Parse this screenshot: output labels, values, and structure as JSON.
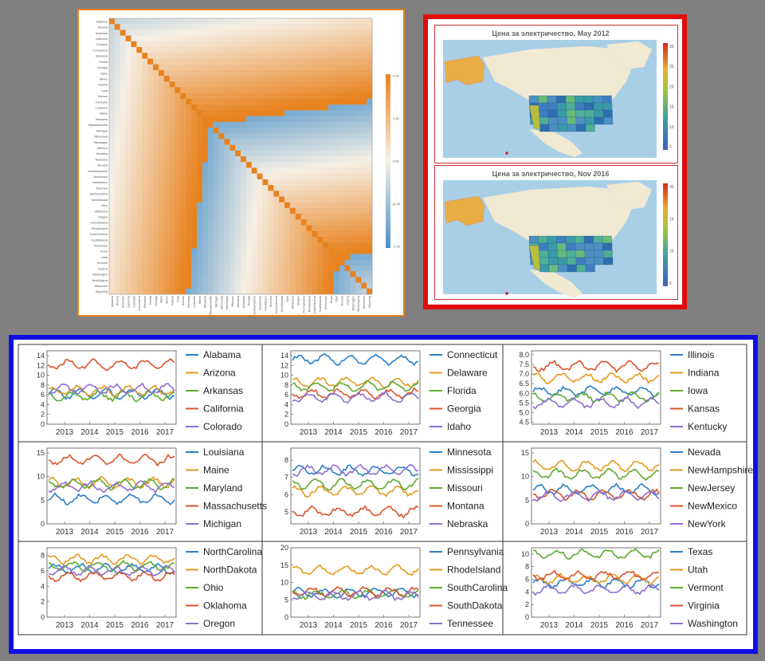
{
  "heatmap": {
    "labels": [
      "Alabama",
      "Arizona",
      "Arkansas",
      "California",
      "Colorado",
      "Connecticut",
      "Delaware",
      "Florida",
      "Georgia",
      "Idaho",
      "Illinois",
      "Indiana",
      "Iowa",
      "Kansas",
      "Kentucky",
      "Louisiana",
      "Maine",
      "Maryland",
      "Massachusetts",
      "Michigan",
      "Minnesota",
      "Mississippi",
      "Missouri",
      "Montana",
      "Nebraska",
      "Nevada",
      "NewHampshire",
      "NewJersey",
      "NewMexico",
      "NewYork",
      "NorthCarolina",
      "NorthDakota",
      "Ohio",
      "Oklahoma",
      "Oregon",
      "Pennsylvania",
      "RhodeIsland",
      "SouthCarolina",
      "SouthDakota",
      "Tennessee",
      "Texas",
      "Utah",
      "Vermont",
      "Virginia",
      "Washington",
      "WestVirginia",
      "Wisconsin",
      "Wyoming"
    ],
    "colorbar_ticks": [
      "0.90",
      "0.45",
      "0.00",
      "-0.45",
      "-0.90"
    ],
    "colorbar_mid": "0",
    "colors": {
      "high": "#e8821e",
      "mid": "#f6f0e6",
      "low": "#4a90c8"
    }
  },
  "maps": [
    {
      "title": "Цена за электричество, May 2012",
      "colorbar_ticks": [
        "30",
        "25",
        "20",
        "15",
        "10",
        "5"
      ]
    },
    {
      "title": "Цена за электричество, Nov 2016",
      "colorbar_ticks": [
        "20",
        "15",
        "10",
        "5"
      ]
    }
  ],
  "chart_data": [
    {
      "type": "line",
      "x_ticks": [
        "2013",
        "2014",
        "2015",
        "2016",
        "2017"
      ],
      "y_ticks": [
        0,
        2,
        4,
        6,
        8,
        10,
        12,
        14
      ],
      "ylim": [
        0,
        15
      ],
      "series": [
        {
          "name": "Alabama",
          "level": 6.2,
          "color": "#2b7fc7"
        },
        {
          "name": "Arizona",
          "level": 6.8,
          "color": "#e59a20"
        },
        {
          "name": "Arkansas",
          "level": 5.8,
          "color": "#5daa2e"
        },
        {
          "name": "California",
          "level": 12.2,
          "color": "#d9552d"
        },
        {
          "name": "Colorado",
          "level": 7.2,
          "color": "#8e6fd0"
        }
      ]
    },
    {
      "type": "line",
      "x_ticks": [
        "2013",
        "2014",
        "2015",
        "2016",
        "2017"
      ],
      "y_ticks": [
        0,
        2,
        4,
        6,
        8,
        10,
        12,
        14
      ],
      "ylim": [
        0,
        15
      ],
      "series": [
        {
          "name": "Connecticut",
          "level": 13.2,
          "color": "#2b7fc7"
        },
        {
          "name": "Delaware",
          "level": 8.6,
          "color": "#e59a20"
        },
        {
          "name": "Florida",
          "level": 7.7,
          "color": "#5daa2e"
        },
        {
          "name": "Georgia",
          "level": 6.2,
          "color": "#d9552d"
        },
        {
          "name": "Idaho",
          "level": 5.5,
          "color": "#8e6fd0"
        }
      ]
    },
    {
      "type": "line",
      "x_ticks": [
        "2013",
        "2014",
        "2015",
        "2016",
        "2017"
      ],
      "y_ticks": [
        4.5,
        5.0,
        5.5,
        6.0,
        6.5,
        7.0,
        7.5,
        8.0
      ],
      "ylim": [
        4.4,
        8.2
      ],
      "series": [
        {
          "name": "Illinois",
          "level": 6.1,
          "color": "#2b7fc7"
        },
        {
          "name": "Indiana",
          "level": 6.8,
          "color": "#e59a20"
        },
        {
          "name": "Iowa",
          "level": 5.8,
          "color": "#5daa2e"
        },
        {
          "name": "Kansas",
          "level": 7.4,
          "color": "#d9552d"
        },
        {
          "name": "Kentucky",
          "level": 5.5,
          "color": "#8e6fd0"
        }
      ]
    },
    {
      "type": "line",
      "x_ticks": [
        "2013",
        "2014",
        "2015",
        "2016",
        "2017"
      ],
      "y_ticks": [
        0,
        5,
        10,
        15
      ],
      "ylim": [
        0,
        16
      ],
      "series": [
        {
          "name": "Louisiana",
          "level": 5.2,
          "color": "#2b7fc7"
        },
        {
          "name": "Maine",
          "level": 8.7,
          "color": "#e59a20"
        },
        {
          "name": "Maryland",
          "level": 8.4,
          "color": "#5daa2e"
        },
        {
          "name": "Massachusetts",
          "level": 13.5,
          "color": "#d9552d"
        },
        {
          "name": "Michigan",
          "level": 7.8,
          "color": "#8e6fd0"
        }
      ]
    },
    {
      "type": "line",
      "x_ticks": [
        "2013",
        "2014",
        "2015",
        "2016",
        "2017"
      ],
      "y_ticks": [
        5,
        6,
        7,
        8
      ],
      "ylim": [
        4.3,
        8.7
      ],
      "series": [
        {
          "name": "Minnesota",
          "level": 7.4,
          "color": "#2b7fc7"
        },
        {
          "name": "Mississippi",
          "level": 6.2,
          "color": "#e59a20"
        },
        {
          "name": "Missouri",
          "level": 6.6,
          "color": "#5daa2e"
        },
        {
          "name": "Montana",
          "level": 5.0,
          "color": "#d9552d"
        },
        {
          "name": "Nebraska",
          "level": 7.4,
          "color": "#8e6fd0"
        }
      ]
    },
    {
      "type": "line",
      "x_ticks": [
        "2013",
        "2014",
        "2015",
        "2016",
        "2017"
      ],
      "y_ticks": [
        0,
        5,
        10,
        15
      ],
      "ylim": [
        0,
        16
      ],
      "series": [
        {
          "name": "Nevada",
          "level": 7.2,
          "color": "#2b7fc7"
        },
        {
          "name": "NewHampshire",
          "level": 12.3,
          "color": "#e59a20"
        },
        {
          "name": "NewJersey",
          "level": 10.5,
          "color": "#5daa2e"
        },
        {
          "name": "NewMexico",
          "level": 6.2,
          "color": "#d9552d"
        },
        {
          "name": "NewYork",
          "level": 5.9,
          "color": "#8e6fd0"
        }
      ]
    },
    {
      "type": "line",
      "x_ticks": [
        "2013",
        "2014",
        "2015",
        "2016",
        "2017"
      ],
      "y_ticks": [
        0,
        2,
        4,
        6,
        8
      ],
      "ylim": [
        0,
        9
      ],
      "series": [
        {
          "name": "NorthCarolina",
          "level": 6.3,
          "color": "#2b7fc7"
        },
        {
          "name": "NorthDakota",
          "level": 7.5,
          "color": "#e59a20"
        },
        {
          "name": "Ohio",
          "level": 6.6,
          "color": "#5daa2e"
        },
        {
          "name": "Oklahoma",
          "level": 5.3,
          "color": "#d9552d"
        },
        {
          "name": "Oregon",
          "level": 6.0,
          "color": "#8e6fd0"
        }
      ]
    },
    {
      "type": "line",
      "x_ticks": [
        "2013",
        "2014",
        "2015",
        "2016",
        "2017"
      ],
      "y_ticks": [
        0,
        5,
        10,
        15,
        20
      ],
      "ylim": [
        0,
        20
      ],
      "series": [
        {
          "name": "Pennsylvania",
          "level": 7.0,
          "color": "#2b7fc7"
        },
        {
          "name": "RhodeIsland",
          "level": 13.5,
          "color": "#e59a20"
        },
        {
          "name": "SouthCarolina",
          "level": 6.6,
          "color": "#5daa2e"
        },
        {
          "name": "SouthDakota",
          "level": 7.3,
          "color": "#d9552d"
        },
        {
          "name": "Tennessee",
          "level": 6.2,
          "color": "#8e6fd0"
        }
      ]
    },
    {
      "type": "line",
      "x_ticks": [
        "2013",
        "2014",
        "2015",
        "2016",
        "2017"
      ],
      "y_ticks": [
        0,
        2,
        4,
        6,
        8,
        10
      ],
      "ylim": [
        0,
        11
      ],
      "series": [
        {
          "name": "Texas",
          "level": 5.4,
          "color": "#2b7fc7"
        },
        {
          "name": "Utah",
          "level": 6.0,
          "color": "#e59a20"
        },
        {
          "name": "Vermont",
          "level": 10.0,
          "color": "#5daa2e"
        },
        {
          "name": "Virginia",
          "level": 6.6,
          "color": "#d9552d"
        },
        {
          "name": "Washington",
          "level": 4.4,
          "color": "#8e6fd0"
        }
      ]
    }
  ]
}
